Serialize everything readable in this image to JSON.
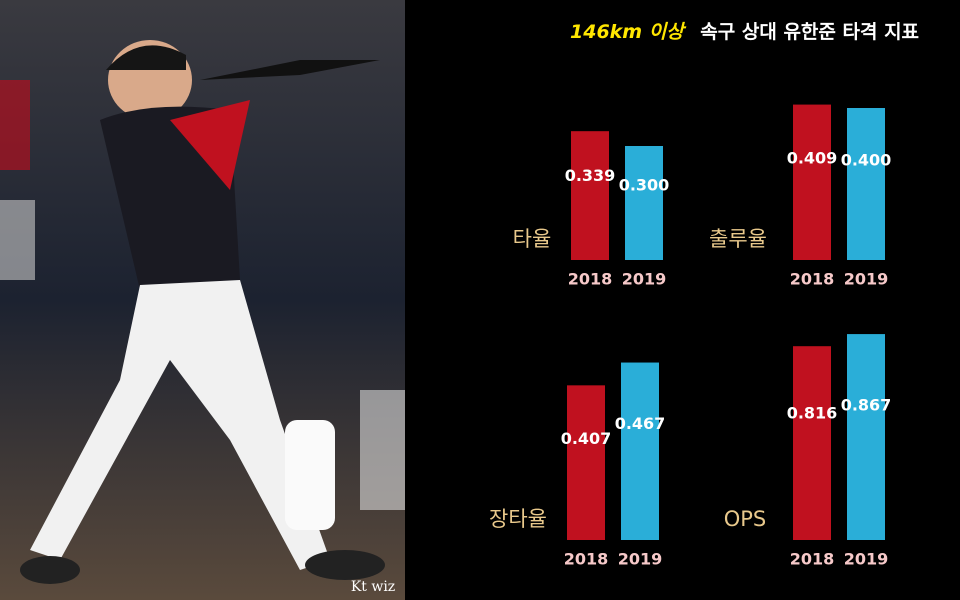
{
  "header": {
    "highlight": "146km 이상",
    "title": "속구 상대 유한준 타격 지표"
  },
  "photo_credit": "Kt wiz",
  "chart_data": [
    {
      "type": "bar",
      "title": "타율",
      "categories": [
        "2018",
        "2019"
      ],
      "values": [
        0.339,
        0.3
      ],
      "value_labels": [
        "0.339",
        "0.300"
      ],
      "colors": [
        "#c0111f",
        "#2aaed8"
      ],
      "ylim": [
        0,
        0.5
      ]
    },
    {
      "type": "bar",
      "title": "출루율",
      "categories": [
        "2018",
        "2019"
      ],
      "values": [
        0.409,
        0.4
      ],
      "value_labels": [
        "0.409",
        "0.400"
      ],
      "colors": [
        "#c0111f",
        "#2aaed8"
      ],
      "ylim": [
        0,
        0.5
      ]
    },
    {
      "type": "bar",
      "title": "장타율",
      "categories": [
        "2018",
        "2019"
      ],
      "values": [
        0.407,
        0.467
      ],
      "value_labels": [
        "0.407",
        "0.467"
      ],
      "colors": [
        "#c0111f",
        "#2aaed8"
      ],
      "ylim": [
        0,
        0.5
      ]
    },
    {
      "type": "bar",
      "title": "OPS",
      "categories": [
        "2018",
        "2019"
      ],
      "values": [
        0.816,
        0.867
      ],
      "value_labels": [
        "0.816",
        "0.867"
      ],
      "colors": [
        "#c0111f",
        "#2aaed8"
      ],
      "ylim": [
        0,
        0.8
      ]
    }
  ]
}
